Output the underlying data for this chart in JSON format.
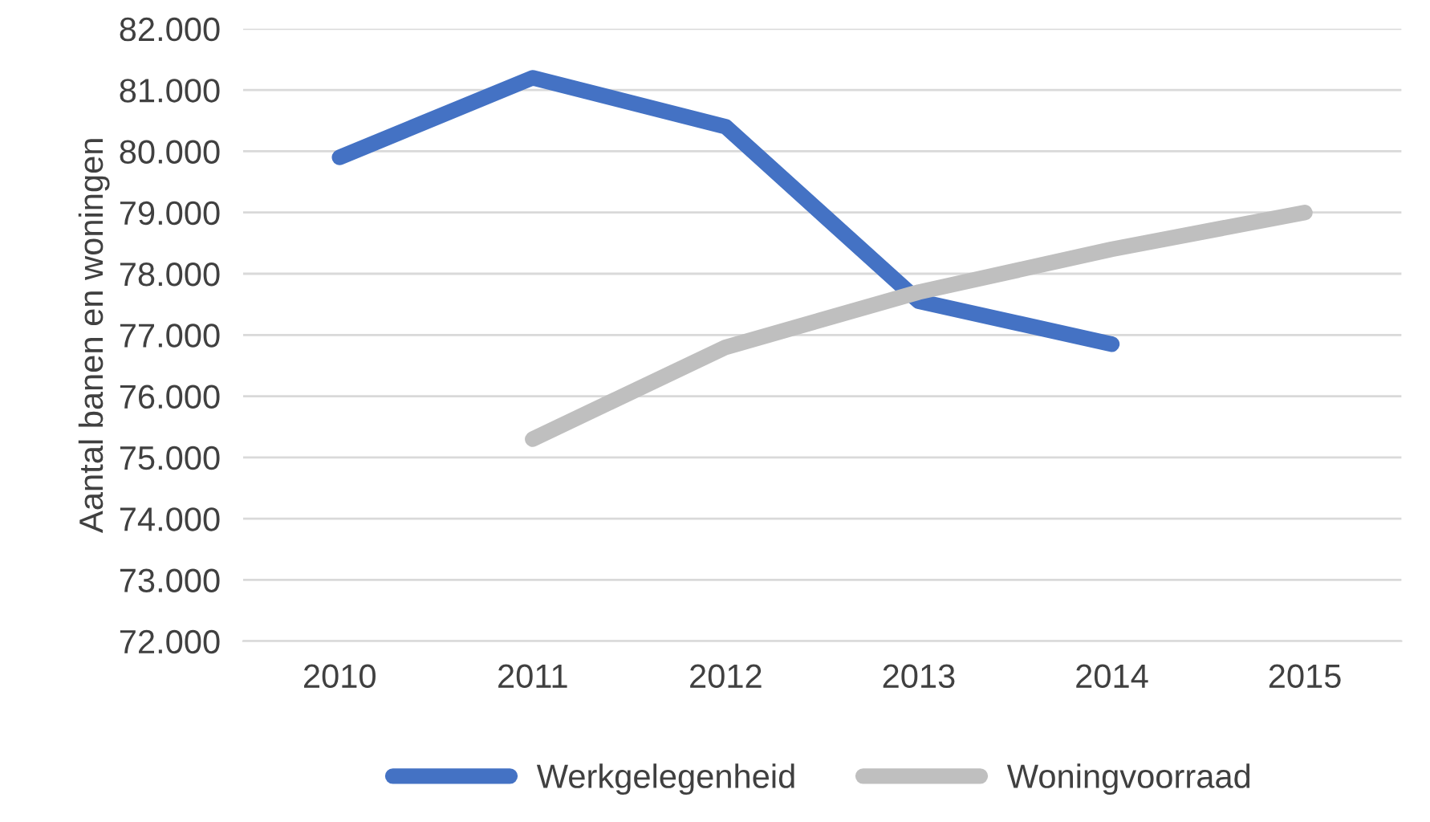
{
  "chart_data": {
    "type": "line",
    "ylabel": "Aantal banen en woningen",
    "categories": [
      "2010",
      "2011",
      "2012",
      "2013",
      "2014",
      "2015"
    ],
    "series": [
      {
        "name": "Werkgelegenheid",
        "color": "#4472c4",
        "values": [
          79900,
          81200,
          80400,
          77550,
          76850,
          null
        ]
      },
      {
        "name": "Woningvoorraad",
        "color": "#bfbfbf",
        "values": [
          null,
          75300,
          76800,
          77700,
          78400,
          79000
        ]
      }
    ],
    "ylim": [
      72000,
      82000
    ],
    "yticks": [
      {
        "value": 72000,
        "label": "72.000"
      },
      {
        "value": 73000,
        "label": "73.000"
      },
      {
        "value": 74000,
        "label": "74.000"
      },
      {
        "value": 75000,
        "label": "75.000"
      },
      {
        "value": 76000,
        "label": "76.000"
      },
      {
        "value": 77000,
        "label": "77.000"
      },
      {
        "value": 78000,
        "label": "78.000"
      },
      {
        "value": 79000,
        "label": "79.000"
      },
      {
        "value": 80000,
        "label": "80.000"
      },
      {
        "value": 81000,
        "label": "81.000"
      },
      {
        "value": 82000,
        "label": "82.000"
      }
    ],
    "grid": "y",
    "legend": "bottom",
    "marker": "none",
    "line_style": "solid"
  }
}
